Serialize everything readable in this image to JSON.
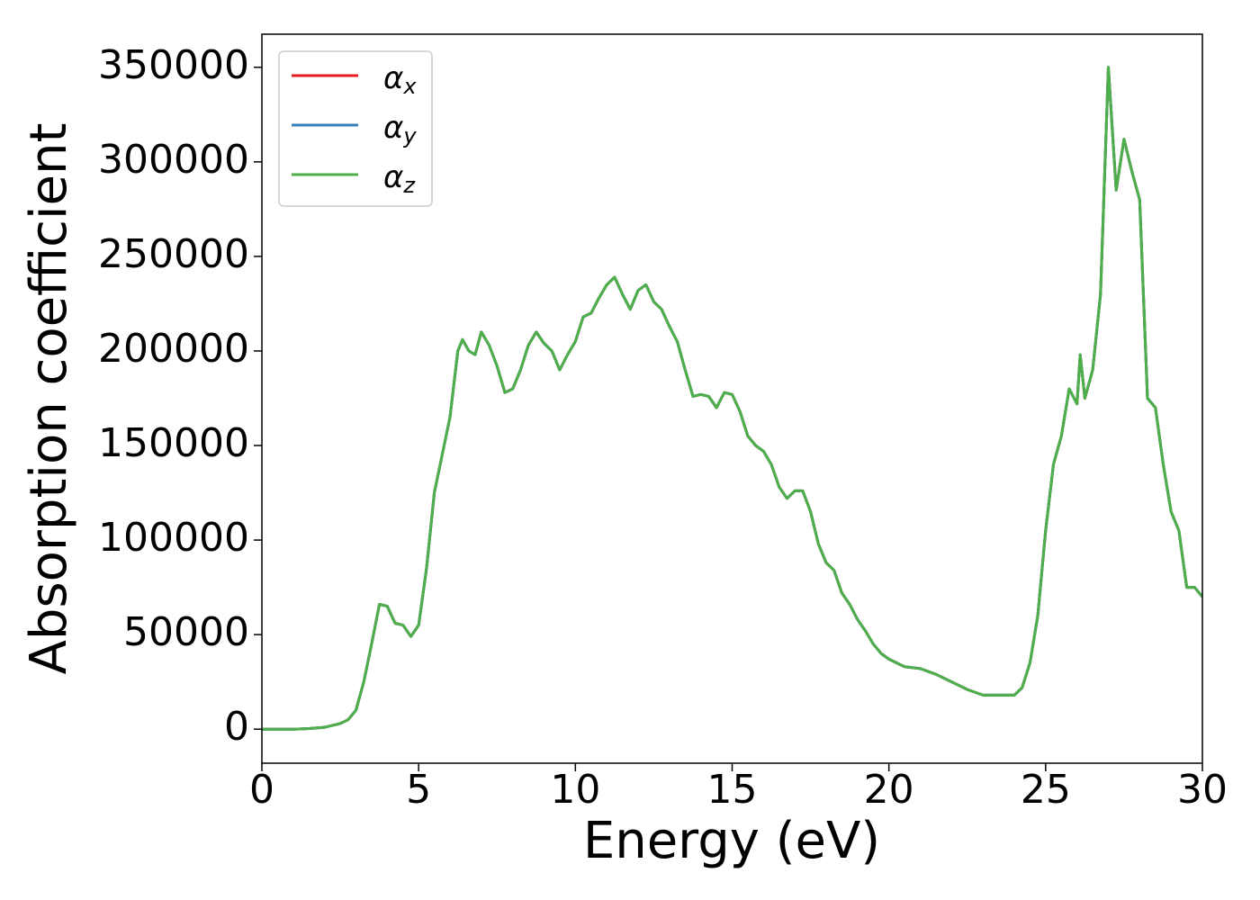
{
  "chart_data": {
    "type": "line",
    "xlabel": "Energy (eV)",
    "ylabel": "Absorption coefficient",
    "x": [
      0,
      0.5,
      1,
      1.5,
      2,
      2.5,
      2.75,
      3,
      3.25,
      3.5,
      3.75,
      4,
      4.25,
      4.5,
      4.75,
      5,
      5.25,
      5.5,
      5.75,
      6,
      6.25,
      6.4,
      6.6,
      6.8,
      7,
      7.25,
      7.5,
      7.75,
      8,
      8.25,
      8.5,
      8.75,
      9,
      9.25,
      9.5,
      9.75,
      10,
      10.25,
      10.5,
      10.75,
      11,
      11.25,
      11.5,
      11.75,
      12,
      12.25,
      12.5,
      12.75,
      13,
      13.25,
      13.5,
      13.75,
      14,
      14.25,
      14.5,
      14.75,
      15,
      15.25,
      15.5,
      15.75,
      16,
      16.25,
      16.5,
      16.75,
      17,
      17.25,
      17.5,
      17.75,
      18,
      18.25,
      18.5,
      18.75,
      19,
      19.25,
      19.5,
      19.75,
      20,
      20.5,
      21,
      21.5,
      22,
      22.5,
      23,
      23.5,
      24,
      24.25,
      24.5,
      24.75,
      25,
      25.25,
      25.5,
      25.75,
      26,
      26.1,
      26.25,
      26.5,
      26.75,
      27,
      27.25,
      27.5,
      27.75,
      28,
      28.25,
      28.5,
      28.75,
      29,
      29.25,
      29.5,
      29.75,
      30
    ],
    "series": [
      {
        "name": "αx",
        "color": "#e41a1c",
        "values": [
          0,
          0,
          0,
          300,
          1000,
          3000,
          5000,
          10000,
          25000,
          45000,
          66000,
          65000,
          56000,
          55000,
          49000,
          55000,
          85000,
          125000,
          145000,
          165000,
          200000,
          206000,
          200000,
          198000,
          210000,
          203000,
          192000,
          178000,
          180000,
          190000,
          203000,
          210000,
          204000,
          200000,
          190000,
          198000,
          205000,
          218000,
          220000,
          228000,
          235000,
          239000,
          230000,
          222000,
          232000,
          235000,
          226000,
          222000,
          213000,
          205000,
          190000,
          176000,
          177000,
          176000,
          170000,
          178000,
          177000,
          168000,
          155000,
          150000,
          147000,
          140000,
          128000,
          122000,
          126000,
          126000,
          115000,
          98000,
          88000,
          84000,
          72000,
          66000,
          58000,
          52000,
          45000,
          40000,
          37000,
          33000,
          32000,
          29000,
          25000,
          21000,
          18000,
          18000,
          18000,
          22000,
          35000,
          60000,
          105000,
          140000,
          155000,
          180000,
          172000,
          198000,
          175000,
          190000,
          230000,
          350000,
          285000,
          312000,
          295000,
          280000,
          175000,
          170000,
          140000,
          115000,
          105000,
          75000,
          75000,
          70000
        ]
      },
      {
        "name": "αy",
        "color": "#377eb8",
        "values": [
          0,
          0,
          0,
          300,
          1000,
          3000,
          5000,
          10000,
          25000,
          45000,
          66000,
          65000,
          56000,
          55000,
          49000,
          55000,
          85000,
          125000,
          145000,
          165000,
          200000,
          206000,
          200000,
          198000,
          210000,
          203000,
          192000,
          178000,
          180000,
          190000,
          203000,
          210000,
          204000,
          200000,
          190000,
          198000,
          205000,
          218000,
          220000,
          228000,
          235000,
          239000,
          230000,
          222000,
          232000,
          235000,
          226000,
          222000,
          213000,
          205000,
          190000,
          176000,
          177000,
          176000,
          170000,
          178000,
          177000,
          168000,
          155000,
          150000,
          147000,
          140000,
          128000,
          122000,
          126000,
          126000,
          115000,
          98000,
          88000,
          84000,
          72000,
          66000,
          58000,
          52000,
          45000,
          40000,
          37000,
          33000,
          32000,
          29000,
          25000,
          21000,
          18000,
          18000,
          18000,
          22000,
          35000,
          60000,
          105000,
          140000,
          155000,
          180000,
          172000,
          198000,
          175000,
          190000,
          230000,
          350000,
          285000,
          312000,
          295000,
          280000,
          175000,
          170000,
          140000,
          115000,
          105000,
          75000,
          75000,
          70000
        ]
      },
      {
        "name": "αz",
        "color": "#4daf4a",
        "values": [
          0,
          0,
          0,
          300,
          1000,
          3000,
          5000,
          10000,
          25000,
          45000,
          66000,
          65000,
          56000,
          55000,
          49000,
          55000,
          85000,
          125000,
          145000,
          165000,
          200000,
          206000,
          200000,
          198000,
          210000,
          203000,
          192000,
          178000,
          180000,
          190000,
          203000,
          210000,
          204000,
          200000,
          190000,
          198000,
          205000,
          218000,
          220000,
          228000,
          235000,
          239000,
          230000,
          222000,
          232000,
          235000,
          226000,
          222000,
          213000,
          205000,
          190000,
          176000,
          177000,
          176000,
          170000,
          178000,
          177000,
          168000,
          155000,
          150000,
          147000,
          140000,
          128000,
          122000,
          126000,
          126000,
          115000,
          98000,
          88000,
          84000,
          72000,
          66000,
          58000,
          52000,
          45000,
          40000,
          37000,
          33000,
          32000,
          29000,
          25000,
          21000,
          18000,
          18000,
          18000,
          22000,
          35000,
          60000,
          105000,
          140000,
          155000,
          180000,
          172000,
          198000,
          175000,
          190000,
          230000,
          350000,
          285000,
          312000,
          295000,
          280000,
          175000,
          170000,
          140000,
          115000,
          105000,
          75000,
          75000,
          70000
        ]
      }
    ],
    "xlim": [
      0,
      30
    ],
    "xticks": [
      0,
      5,
      10,
      15,
      20,
      25,
      30
    ],
    "ylim": [
      -18000,
      367500
    ],
    "yticks": [
      0,
      50000,
      100000,
      150000,
      200000,
      250000,
      300000,
      350000
    ],
    "legend": "upper left"
  }
}
